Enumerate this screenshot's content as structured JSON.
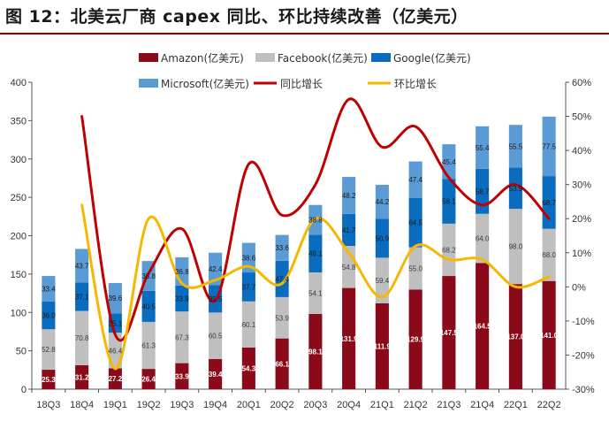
{
  "title": "图 12：北美云厂商 capex 同比、环比持续改善（亿美元）",
  "colors": {
    "amazon": "#8b0a1a",
    "facebook": "#bfbfbf",
    "google": "#0a6cbf",
    "microsoft": "#5b9bd5",
    "yoy": "#c00000",
    "qoq": "#f5b800",
    "title_rule": "#8b0000"
  },
  "chart_data": {
    "type": "bar",
    "stacked": true,
    "categories": [
      "18Q3",
      "18Q4",
      "19Q1",
      "19Q2",
      "19Q3",
      "19Q4",
      "20Q1",
      "20Q2",
      "20Q3",
      "20Q4",
      "21Q1",
      "21Q2",
      "21Q3",
      "21Q4",
      "22Q1",
      "22Q2"
    ],
    "series": [
      {
        "name": "Amazon(亿美元)",
        "key": "amazon",
        "values": [
          25.3,
          31.2,
          27.2,
          26.4,
          33.9,
          39.4,
          54.3,
          66.1,
          98.1,
          131.9,
          111.9,
          129.9,
          147.5,
          164.5,
          137.0,
          141.0
        ]
      },
      {
        "name": "Facebook(亿美元)",
        "key": "facebook",
        "values": [
          52.8,
          70.8,
          46.4,
          61.3,
          67.3,
          60.5,
          60.1,
          53.9,
          54.1,
          54.8,
          59.4,
          55.0,
          68.2,
          64.0,
          98.0,
          68.0
        ]
      },
      {
        "name": "Google(亿美元)",
        "key": "google",
        "values": [
          36.0,
          37.1,
          25.1,
          40.5,
          33.9,
          35.5,
          37.7,
          47.4,
          49.1,
          41.7,
          50.9,
          64.5,
          58.1,
          58.7,
          53.9,
          68.7
        ]
      },
      {
        "name": "Microsoft(亿美元)",
        "key": "microsoft",
        "values": [
          33.4,
          43.7,
          39.6,
          38.8,
          36.8,
          42.4,
          38.6,
          33.6,
          38.8,
          48.2,
          44.2,
          47.4,
          45.4,
          55.4,
          55.5,
          77.5
        ]
      }
    ],
    "bar_labels": {
      "amazon": [
        "25.3",
        "31.2",
        "27.2",
        "26.4",
        "33.9",
        "39.4",
        "54.3",
        "66.1",
        "98.1",
        "131.9",
        "111.9",
        "129.9",
        "147.5",
        "164.5",
        "137.0",
        "141.0"
      ],
      "facebook": [
        "52.8",
        "70.8",
        "46.4",
        "61.3",
        "67.3",
        "60.5",
        "60.1",
        "53.9",
        "54.1",
        "54.8",
        "59.4",
        "55.0",
        "68.2",
        "64.0",
        "98.0",
        "68.0"
      ],
      "google": [
        "36.0",
        "37.1",
        "25.1",
        "40.5",
        "33.9",
        "35.5",
        "37.7",
        "47.4",
        "49.1",
        "41.7",
        "50.9",
        "64.5",
        "58.1",
        "58.7",
        "53.9",
        "68.7"
      ],
      "microsoft": [
        "33.4",
        "43.7",
        "39.6",
        "38.8",
        "36.8",
        "42.4",
        "38.6",
        "33.6",
        "38.8",
        "48.2",
        "44.2",
        "47.4",
        "45.4",
        "55.4",
        "55.5",
        "77.5"
      ]
    },
    "lines": [
      {
        "name": "同比增长",
        "key": "yoy",
        "axis": "right",
        "values": [
          null,
          50,
          -14,
          4,
          17,
          -4,
          36,
          21,
          30,
          55,
          41,
          47,
          32,
          24,
          30,
          20
        ]
      },
      {
        "name": "环比增长",
        "key": "qoq",
        "axis": "right",
        "values": [
          null,
          24,
          -24,
          20,
          1,
          2,
          6,
          1,
          20,
          10,
          -3,
          12,
          8,
          8,
          0,
          3
        ]
      }
    ],
    "y_left": {
      "min": 0,
      "max": 400,
      "ticks": [
        "0",
        "50",
        "100",
        "150",
        "200",
        "250",
        "300",
        "350",
        "400"
      ]
    },
    "y_right": {
      "min": -30,
      "max": 60,
      "ticks": [
        "-30%",
        "-20%",
        "-10%",
        "0%",
        "10%",
        "20%",
        "30%",
        "40%",
        "50%",
        "60%"
      ]
    },
    "legend": [
      "Amazon(亿美元)",
      "Facebook(亿美元)",
      "Google(亿美元)",
      "Microsoft(亿美元)",
      "同比增长",
      "环比增长"
    ],
    "legend_position": "top"
  }
}
